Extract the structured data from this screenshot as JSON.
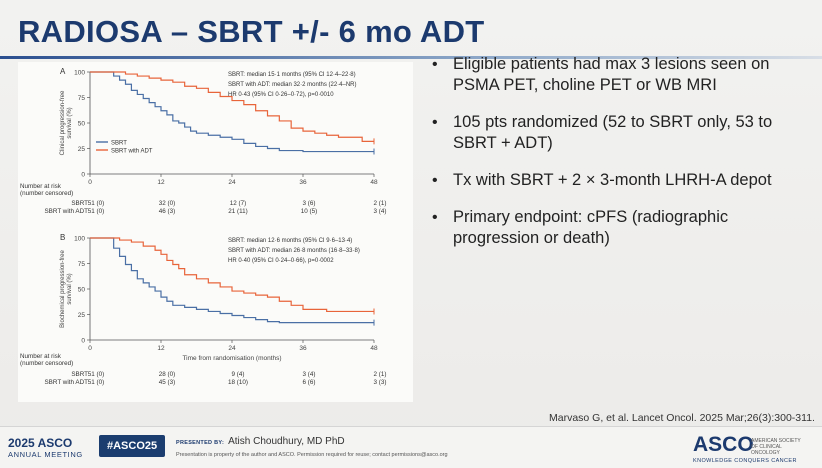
{
  "slide": {
    "title": "RADIOSA – SBRT +/- 6 mo ADT"
  },
  "bullets": [
    "Eligible patients had max 3 lesions seen on PSMA PET, choline PET or WB MRI",
    "105 pts randomized (52 to SBRT only, 53 to SBRT + ADT)",
    "Tx with SBRT + 2 × 3-month LHRH-A depot",
    "Primary endpoint: cPFS (radiographic progression or death)"
  ],
  "bullet_glyph": "•",
  "citation": "Marvaso G, et al. Lancet Oncol. 2025 Mar;26(3):300-311.",
  "footer": {
    "year": "2025 ASCO",
    "meeting": "ANNUAL MEETING",
    "hashtag": "#ASCO25",
    "presented_by_label": "PRESENTED BY:",
    "presenter": "Atish Choudhury, MD PhD",
    "notice": "Presentation is property of the author and ASCO. Permission required for reuse; contact permissions@asco.org",
    "logo_word": "ASCO",
    "logo_sub": "AMERICAN SOCIETY OF CLINICAL ONCOLOGY",
    "logo_tagline": "KNOWLEDGE CONQUERS CANCER"
  },
  "colors": {
    "sbrt": "#4a6fa5",
    "sbrt_adt": "#e8643a",
    "title": "#1c3a6e"
  },
  "chart_data": [
    {
      "type": "line",
      "panel_label": "A",
      "ylabel": "Clinical progression-free survival (%)",
      "xlabel": "",
      "x_ticks": [
        0,
        12,
        24,
        36,
        48
      ],
      "y_ticks": [
        0,
        25,
        50,
        75,
        100
      ],
      "xlim": [
        0,
        48
      ],
      "ylim": [
        0,
        100
      ],
      "legend": [
        "SBRT",
        "SBRT with ADT"
      ],
      "legend_position": "left",
      "annotation": [
        "SBRT: median 15·1 months (95% CI 12·4–22·8)",
        "SBRT with ADT: median 32·2 months (22·4–NR)",
        "HR 0·43 (95% CI 0·26–0·72), p=0·0010"
      ],
      "series": [
        {
          "name": "SBRT",
          "x": [
            0,
            3,
            4,
            5,
            6,
            7,
            8,
            9,
            10,
            11,
            12,
            13,
            14,
            15,
            16,
            17,
            18,
            20,
            22,
            24,
            26,
            28,
            30,
            32,
            36,
            40,
            44,
            48
          ],
          "y": [
            100,
            100,
            96,
            92,
            88,
            82,
            78,
            74,
            70,
            66,
            62,
            58,
            52,
            50,
            46,
            42,
            40,
            38,
            36,
            34,
            30,
            27,
            25,
            23,
            22,
            22,
            22,
            22
          ]
        },
        {
          "name": "SBRT with ADT",
          "x": [
            0,
            4,
            6,
            8,
            10,
            12,
            14,
            16,
            18,
            20,
            22,
            24,
            26,
            28,
            30,
            32,
            34,
            36,
            38,
            40,
            42,
            44,
            46,
            48
          ],
          "y": [
            100,
            100,
            98,
            96,
            94,
            92,
            90,
            86,
            84,
            80,
            76,
            72,
            68,
            62,
            57,
            52,
            45,
            42,
            40,
            38,
            36,
            36,
            32,
            32
          ]
        }
      ],
      "risk_table": {
        "title": "Number at risk",
        "subtitle": "(number censored)",
        "rows": [
          {
            "label": "SBRT",
            "values": [
              "51 (0)",
              "32 (0)",
              "12 (7)",
              "3 (6)",
              "2 (1)"
            ]
          },
          {
            "label": "SBRT with ADT",
            "values": [
              "51 (0)",
              "46 (3)",
              "21 (11)",
              "10 (5)",
              "3 (4)"
            ]
          }
        ]
      }
    },
    {
      "type": "line",
      "panel_label": "B",
      "ylabel": "Biochemical progression-free survival (%)",
      "xlabel": "Time from randomisation (months)",
      "x_ticks": [
        0,
        12,
        24,
        36,
        48
      ],
      "y_ticks": [
        0,
        25,
        50,
        75,
        100
      ],
      "xlim": [
        0,
        48
      ],
      "ylim": [
        0,
        100
      ],
      "annotation": [
        "SBRT: median 12·6 months (95% CI 9·6–13·4)",
        "SBRT with ADT: median 26·8 months (16·8–33·8)",
        "HR 0·40 (95% CI 0·24–0·66), p=0·0002"
      ],
      "series": [
        {
          "name": "SBRT",
          "x": [
            0,
            3,
            4,
            5,
            6,
            7,
            8,
            9,
            10,
            11,
            12,
            13,
            14,
            16,
            18,
            20,
            22,
            24,
            26,
            28,
            30,
            32,
            36,
            40,
            44,
            48
          ],
          "y": [
            100,
            100,
            90,
            82,
            74,
            68,
            60,
            56,
            52,
            48,
            42,
            38,
            34,
            32,
            30,
            28,
            26,
            24,
            22,
            20,
            18,
            17,
            17,
            17,
            17,
            17
          ]
        },
        {
          "name": "SBRT with ADT",
          "x": [
            0,
            3,
            5,
            7,
            9,
            11,
            12,
            13,
            14,
            15,
            16,
            18,
            20,
            22,
            24,
            26,
            28,
            30,
            32,
            34,
            36,
            40,
            44,
            48
          ],
          "y": [
            100,
            100,
            98,
            96,
            92,
            88,
            84,
            78,
            74,
            70,
            64,
            60,
            56,
            52,
            48,
            46,
            44,
            42,
            38,
            34,
            30,
            28,
            28,
            28
          ]
        }
      ],
      "risk_table": {
        "title": "Number at risk",
        "subtitle": "(number censored)",
        "rows": [
          {
            "label": "SBRT",
            "values": [
              "51 (0)",
              "28 (0)",
              "9 (4)",
              "3 (4)",
              "2 (1)"
            ]
          },
          {
            "label": "SBRT with ADT",
            "values": [
              "51 (0)",
              "45 (3)",
              "18 (10)",
              "6 (6)",
              "3 (3)"
            ]
          }
        ]
      }
    }
  ]
}
